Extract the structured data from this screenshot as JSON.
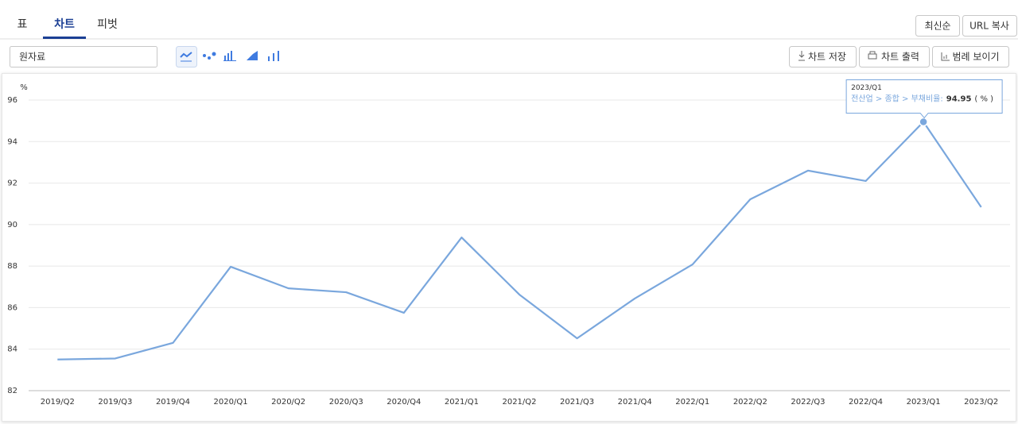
{
  "tabs": [
    "표",
    "차트",
    "피벗"
  ],
  "top_buttons": [
    "최신순",
    "URL 복사"
  ],
  "dropdown": "원자료",
  "toolbar_buttons": [
    "차트 저장",
    "차트 출력",
    "범례 보이기"
  ],
  "chart_data": {
    "type": "line",
    "y_unit": "%",
    "categories": [
      "2019/Q2",
      "2019/Q3",
      "2019/Q4",
      "2020/Q1",
      "2020/Q2",
      "2020/Q3",
      "2020/Q4",
      "2021/Q1",
      "2021/Q2",
      "2021/Q3",
      "2021/Q4",
      "2022/Q1",
      "2022/Q2",
      "2022/Q3",
      "2022/Q4",
      "2023/Q1",
      "2023/Q2"
    ],
    "values": [
      83.5,
      83.55,
      84.3,
      87.97,
      86.93,
      86.74,
      85.75,
      89.38,
      86.63,
      84.52,
      86.44,
      88.08,
      91.22,
      92.6,
      92.1,
      94.95,
      90.84
    ],
    "color": "#7aa7dd",
    "ylim": [
      82,
      96
    ],
    "yticks": [
      82,
      84,
      86,
      88,
      90,
      92,
      94,
      96
    ],
    "grid": true,
    "tooltip": {
      "index": 15,
      "series_label": "전산업 > 종합 > 부채비율:",
      "unit": "( % )"
    }
  }
}
